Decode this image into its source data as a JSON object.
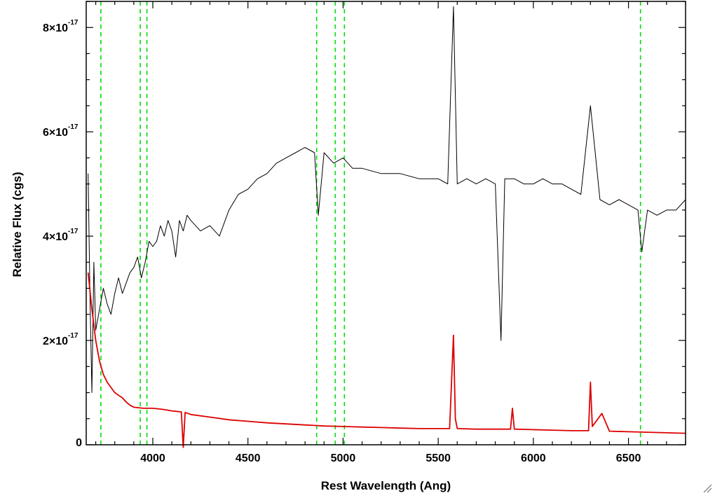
{
  "chart_data": {
    "type": "line",
    "title": "",
    "xlabel": "Rest Wavelength (Ang)",
    "ylabel": "Relative Flux (cgs)",
    "xlim": [
      3650,
      6800
    ],
    "ylim": [
      0,
      8.5e-17
    ],
    "x_ticks": [
      {
        "value": 4000,
        "label": "4000"
      },
      {
        "value": 4500,
        "label": "4500"
      },
      {
        "value": 5000,
        "label": "5000"
      },
      {
        "value": 5500,
        "label": "5500"
      },
      {
        "value": 6000,
        "label": "6000"
      },
      {
        "value": 6500,
        "label": "6500"
      }
    ],
    "y_ticks": [
      {
        "value": 0,
        "label": "0",
        "exponent": ""
      },
      {
        "value": 2e-17,
        "label": "2×10",
        "exponent": "-17"
      },
      {
        "value": 4e-17,
        "label": "4×10",
        "exponent": "-17"
      },
      {
        "value": 6e-17,
        "label": "6×10",
        "exponent": "-17"
      },
      {
        "value": 8e-17,
        "label": "8×10",
        "exponent": "-17"
      }
    ],
    "reference_lines": {
      "color": "#00dd00",
      "style": "dashed",
      "x": [
        3727,
        3934,
        3969,
        4861,
        4959,
        5007,
        6563
      ]
    },
    "series": [
      {
        "color": "#000000",
        "x": [
          3660,
          3670,
          3680,
          3690,
          3700,
          3720,
          3740,
          3760,
          3780,
          3800,
          3820,
          3840,
          3860,
          3880,
          3900,
          3920,
          3940,
          3960,
          3980,
          4000,
          4020,
          4040,
          4060,
          4080,
          4100,
          4120,
          4140,
          4160,
          4180,
          4200,
          4250,
          4300,
          4350,
          4400,
          4450,
          4500,
          4550,
          4600,
          4650,
          4700,
          4750,
          4800,
          4850,
          4870,
          4900,
          4950,
          5000,
          5050,
          5100,
          5200,
          5300,
          5400,
          5500,
          5550,
          5580,
          5600,
          5650,
          5700,
          5750,
          5800,
          5830,
          5850,
          5900,
          5950,
          6000,
          6050,
          6100,
          6150,
          6200,
          6250,
          6300,
          6350,
          6400,
          6450,
          6500,
          6550,
          6570,
          6600,
          6650,
          6700,
          6750,
          6800
        ],
        "y": [
          5.2e-17,
          2.8e-17,
          1e-17,
          3.5e-17,
          2.2e-17,
          2.6e-17,
          3e-17,
          2.7e-17,
          2.5e-17,
          2.9e-17,
          3.2e-17,
          2.9e-17,
          3.1e-17,
          3.3e-17,
          3.4e-17,
          3.6e-17,
          3.2e-17,
          3.5e-17,
          3.9e-17,
          3.8e-17,
          3.9e-17,
          4.2e-17,
          4e-17,
          4.3e-17,
          4.1e-17,
          3.6e-17,
          4.3e-17,
          4.1e-17,
          4.4e-17,
          4.3e-17,
          4.1e-17,
          4.2e-17,
          4e-17,
          4.5e-17,
          4.8e-17,
          4.9e-17,
          5.1e-17,
          5.2e-17,
          5.4e-17,
          5.5e-17,
          5.6e-17,
          5.7e-17,
          5.6e-17,
          4.4e-17,
          5.6e-17,
          5.4e-17,
          5.5e-17,
          5.3e-17,
          5.3e-17,
          5.2e-17,
          5.2e-17,
          5.1e-17,
          5.1e-17,
          5e-17,
          8.4e-17,
          5e-17,
          5.1e-17,
          5e-17,
          5.1e-17,
          5e-17,
          2e-17,
          5.1e-17,
          5.1e-17,
          5e-17,
          5e-17,
          5.1e-17,
          5e-17,
          5e-17,
          4.9e-17,
          4.8e-17,
          6.5e-17,
          4.7e-17,
          4.6e-17,
          4.7e-17,
          4.6e-17,
          4.5e-17,
          3.7e-17,
          4.5e-17,
          4.4e-17,
          4.5e-17,
          4.5e-17,
          4.7e-17
        ]
      },
      {
        "color": "#dd0000",
        "x": [
          3660,
          3680,
          3700,
          3720,
          3740,
          3760,
          3780,
          3800,
          3820,
          3840,
          3860,
          3880,
          3900,
          3950,
          4000,
          4050,
          4100,
          4150,
          4160,
          4170,
          4200,
          4300,
          4400,
          4500,
          4600,
          4700,
          4800,
          4850,
          4900,
          5000,
          5100,
          5200,
          5300,
          5400,
          5500,
          5560,
          5580,
          5590,
          5600,
          5700,
          5800,
          5880,
          5890,
          5900,
          6000,
          6100,
          6200,
          6290,
          6300,
          6310,
          6360,
          6400,
          6500,
          6600,
          6700,
          6800
        ],
        "y": [
          3.3e-17,
          2.6e-17,
          2e-17,
          1.6e-17,
          1.35e-17,
          1.2e-17,
          1.1e-17,
          1e-17,
          9.5e-18,
          9e-18,
          8.2e-18,
          7.6e-18,
          7.2e-18,
          7e-18,
          7e-18,
          6.8e-18,
          6.5e-18,
          6.3e-18,
          -5e-19,
          6.2e-18,
          5.8e-18,
          5.3e-18,
          4.8e-18,
          4.5e-18,
          4.2e-18,
          4e-18,
          3.8e-18,
          3.7e-18,
          3.6e-18,
          3.5e-18,
          3.4e-18,
          3.3e-18,
          3.2e-18,
          3.1e-18,
          3.1e-18,
          3.1e-18,
          2.1e-17,
          5e-18,
          3.1e-18,
          3e-18,
          3e-18,
          3e-18,
          7e-18,
          3e-18,
          2.9e-18,
          2.8e-18,
          2.7e-18,
          2.7e-18,
          1.2e-17,
          3.5e-18,
          6e-18,
          2.6e-18,
          2.5e-18,
          2.4e-18,
          2.3e-18,
          2.2e-18
        ]
      }
    ],
    "grid": false,
    "legend": "none"
  }
}
